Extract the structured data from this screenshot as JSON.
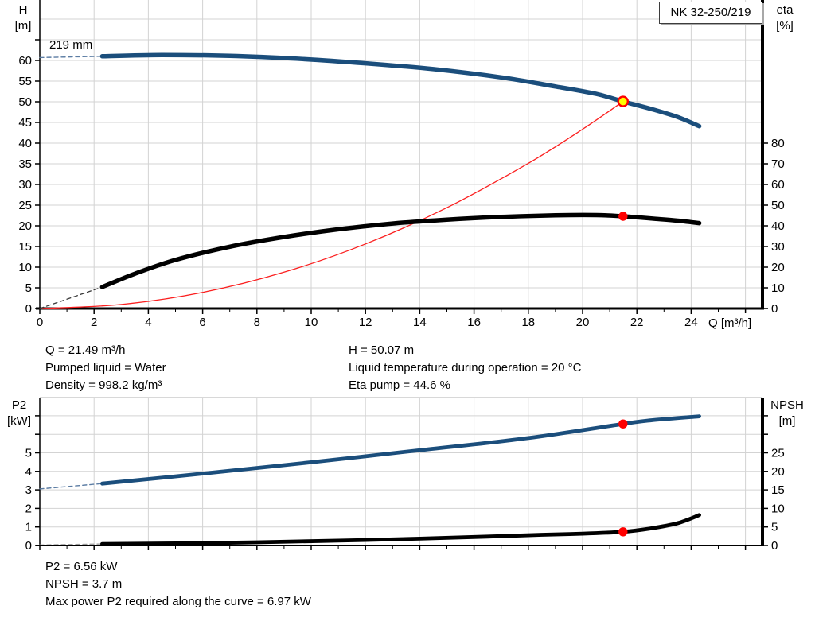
{
  "panel": {
    "title_box": "NK 32-250/219",
    "impeller_label": "219 mm"
  },
  "axis_labels": {
    "top_left_1": "H",
    "top_left_2": "[m]",
    "top_right_1": "eta",
    "top_right_2": "[%]",
    "x_unit": "Q [m³/h]",
    "bottom_left_1": "P2",
    "bottom_left_2": "[kW]",
    "bottom_right_1": "NPSH",
    "bottom_right_2": "[m]"
  },
  "readouts": {
    "q": "Q = 21.49 m³/h",
    "pumped_liquid": "Pumped liquid = Water",
    "density": "Density = 998.2 kg/m³",
    "h": "H = 50.07 m",
    "liquid_temp": "Liquid temperature during operation = 20 °C",
    "eta_pump": "Eta pump = 44.6 %",
    "p2": "P2 = 6.56 kW",
    "npsh": "NPSH = 3.7 m",
    "max_p2": "Max power P2 required along the curve = 6.97 kW"
  },
  "colors": {
    "curve_blue": "#1b4e7c",
    "curve_black": "#000000",
    "curve_red": "#fb2020",
    "lead_blue": "#5b7ca3",
    "lead_black": "#3a3a3a",
    "lead_gray": "#9b9b9b",
    "grid": "#d3d3d3",
    "axis": "#000000",
    "marker_yellow": "#ffff00",
    "marker_red": "#ff0000"
  },
  "chart_data": [
    {
      "type": "line",
      "id": "head-eta-chart",
      "title": "NK 32-250/219",
      "x_axis": {
        "label": "Q [m³/h]",
        "range": [
          0,
          26.6
        ],
        "labeled": [
          0,
          2,
          4,
          6,
          8,
          10,
          12,
          14,
          16,
          18,
          20,
          22,
          24
        ],
        "unlabeled": [
          26
        ],
        "minor": [
          1,
          3,
          5,
          7,
          9,
          11,
          13,
          15,
          17,
          19,
          21,
          23,
          25
        ],
        "grid": [
          2,
          4,
          6,
          8,
          10,
          12,
          14,
          16,
          18,
          20,
          22,
          24,
          26
        ]
      },
      "left_axis": {
        "label": "H [m]",
        "range": [
          0,
          74.6
        ],
        "labeled": [
          0,
          5,
          10,
          15,
          20,
          25,
          30,
          35,
          40,
          45,
          50,
          55,
          60
        ],
        "unlabeled": [
          65
        ],
        "grid": [
          5,
          10,
          15,
          20,
          25,
          30,
          35,
          40,
          45,
          50,
          55,
          60,
          65,
          70,
          75
        ]
      },
      "right_axis": {
        "label": "eta [%]",
        "range": [
          0,
          149
        ],
        "labeled": [
          0,
          10,
          20,
          30,
          40,
          50,
          60,
          70,
          80
        ],
        "unlabeled": []
      },
      "series": [
        {
          "name": "system-curve",
          "axis": "left",
          "color": "curve_red",
          "width": 1.3,
          "points": [
            [
              0,
              0
            ],
            [
              3,
              0.98
            ],
            [
              6,
              3.9
            ],
            [
              9,
              8.78
            ],
            [
              12,
              15.61
            ],
            [
              15,
              24.39
            ],
            [
              18,
              35.12
            ],
            [
              20,
              43.36
            ],
            [
              21.49,
              50.07
            ]
          ]
        },
        {
          "name": "head-curve-lead",
          "axis": "left",
          "color": "lead_blue",
          "width": 1.4,
          "dash": "5 4",
          "points": [
            [
              0,
              60.7
            ],
            [
              2.3,
              61.0
            ]
          ]
        },
        {
          "name": "head-curve",
          "axis": "left",
          "color": "curve_blue",
          "width": 5.5,
          "points": [
            [
              2.3,
              61.0
            ],
            [
              4.5,
              61.3
            ],
            [
              7,
              61.1
            ],
            [
              9.5,
              60.4
            ],
            [
              12,
              59.3
            ],
            [
              14.5,
              57.9
            ],
            [
              17,
              55.9
            ],
            [
              19,
              53.7
            ],
            [
              20.5,
              51.9
            ],
            [
              21.49,
              50.07
            ],
            [
              22.5,
              48.3
            ],
            [
              23.5,
              46.3
            ],
            [
              24.3,
              44.1
            ]
          ]
        },
        {
          "name": "eta-curve-lead",
          "axis": "right",
          "color": "lead_black",
          "width": 1.3,
          "dash": "5 4",
          "points": [
            [
              0,
              0
            ],
            [
              2.3,
              10.4
            ]
          ]
        },
        {
          "name": "eta-curve",
          "axis": "right",
          "color": "curve_black",
          "width": 5.5,
          "points": [
            [
              2.3,
              10.4
            ],
            [
              3.5,
              16.8
            ],
            [
              5,
              23.5
            ],
            [
              7,
              29.9
            ],
            [
              9,
              34.6
            ],
            [
              11,
              38.3
            ],
            [
              13,
              41.1
            ],
            [
              15,
              43.0
            ],
            [
              17,
              44.3
            ],
            [
              19,
              45.1
            ],
            [
              20.5,
              45.2
            ],
            [
              21.49,
              44.6
            ],
            [
              22.7,
              43.4
            ],
            [
              23.5,
              42.5
            ],
            [
              24.3,
              41.3
            ]
          ]
        }
      ],
      "markers": [
        {
          "name": "duty-point",
          "style": "duty",
          "axis": "left",
          "q": 21.49,
          "v": 50.07
        },
        {
          "name": "eta-point",
          "style": "dot",
          "axis": "right",
          "q": 21.49,
          "v": 44.6
        }
      ]
    },
    {
      "type": "line",
      "id": "p2-npsh-chart",
      "title": "",
      "x_axis": {
        "label": "",
        "range": [
          0,
          26.6
        ],
        "labeled": [],
        "unlabeled": [
          0,
          2,
          4,
          6,
          8,
          10,
          12,
          14,
          16,
          18,
          20,
          22,
          24,
          26
        ],
        "minor": [
          1,
          3,
          5,
          7,
          9,
          11,
          13,
          15,
          17,
          19,
          21,
          23,
          25
        ],
        "grid": [
          2,
          4,
          6,
          8,
          10,
          12,
          14,
          16,
          18,
          20,
          22,
          24,
          26
        ]
      },
      "left_axis": {
        "label": "P2 [kW]",
        "range": [
          0,
          8
        ],
        "labeled": [
          0,
          1,
          2,
          3,
          4,
          5
        ],
        "unlabeled": [
          6,
          7
        ],
        "grid": [
          1,
          2,
          3,
          4,
          5,
          6,
          7,
          8
        ]
      },
      "right_axis": {
        "label": "NPSH [m]",
        "range": [
          0,
          40
        ],
        "labeled": [
          0,
          5,
          10,
          15,
          20,
          25
        ],
        "unlabeled": [
          30,
          35
        ]
      },
      "series": [
        {
          "name": "p2-curve-lead",
          "axis": "left",
          "color": "lead_blue",
          "width": 1.4,
          "dash": "5 4",
          "points": [
            [
              0,
              3.05
            ],
            [
              2.3,
              3.34
            ]
          ]
        },
        {
          "name": "p2-curve",
          "axis": "left",
          "color": "curve_blue",
          "width": 4.8,
          "points": [
            [
              2.3,
              3.34
            ],
            [
              6,
              3.88
            ],
            [
              10,
              4.49
            ],
            [
              14,
              5.14
            ],
            [
              18,
              5.8
            ],
            [
              21.49,
              6.56
            ],
            [
              22.5,
              6.75
            ],
            [
              24.3,
              6.97
            ]
          ]
        },
        {
          "name": "npsh-curve-lead",
          "axis": "right",
          "color": "lead_gray",
          "width": 1.3,
          "dash": "5 4",
          "points": [
            [
              0,
              0.15
            ],
            [
              2.3,
              0.4
            ]
          ]
        },
        {
          "name": "npsh-curve",
          "axis": "right",
          "color": "curve_black",
          "width": 4.8,
          "points": [
            [
              2.3,
              0.4
            ],
            [
              5,
              0.55
            ],
            [
              8,
              0.85
            ],
            [
              11,
              1.3
            ],
            [
              14,
              1.85
            ],
            [
              16.5,
              2.4
            ],
            [
              18.5,
              2.9
            ],
            [
              20,
              3.2
            ],
            [
              21.49,
              3.7
            ],
            [
              22.5,
              4.6
            ],
            [
              23.5,
              6.0
            ],
            [
              24.3,
              8.2
            ]
          ]
        }
      ],
      "markers": [
        {
          "name": "p2-point",
          "style": "dot",
          "axis": "left",
          "q": 21.49,
          "v": 6.56
        },
        {
          "name": "npsh-point",
          "style": "dot",
          "axis": "right",
          "q": 21.49,
          "v": 3.7
        }
      ]
    }
  ]
}
